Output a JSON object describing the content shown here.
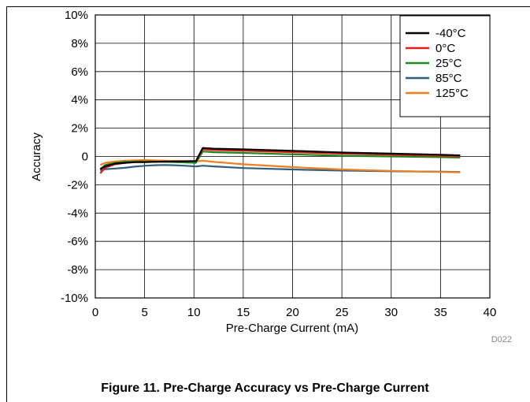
{
  "caption": "Figure 11. Pre-Charge Accuracy vs Pre-Charge Current",
  "doc_code": "D022",
  "chart_data": {
    "type": "line",
    "title": "",
    "xlabel": "Pre-Charge Current (mA)",
    "ylabel": "Accuracy",
    "xlim": [
      0,
      40
    ],
    "ylim": [
      -10,
      10
    ],
    "x_ticks": [
      0,
      5,
      10,
      15,
      20,
      25,
      30,
      35,
      40
    ],
    "x_tick_labels": [
      "0",
      "5",
      "10",
      "15",
      "20",
      "25",
      "30",
      "35",
      "40"
    ],
    "y_ticks": [
      -10,
      -8,
      -6,
      -4,
      -2,
      0,
      2,
      4,
      6,
      8,
      10
    ],
    "y_tick_labels": [
      "-10%",
      "-8%",
      "-6%",
      "-4%",
      "-2%",
      "0",
      "2%",
      "4%",
      "6%",
      "8%",
      "10%"
    ],
    "grid": true,
    "legend_position": "top-right",
    "series": [
      {
        "name": "-40°C",
        "color": "#000000",
        "x": [
          0.5,
          1,
          2,
          3,
          4,
          5,
          6,
          7,
          8,
          9,
          10.2,
          10.9,
          12,
          15,
          20,
          25,
          30,
          35,
          37
        ],
        "y": [
          -0.9,
          -0.7,
          -0.5,
          -0.45,
          -0.4,
          -0.4,
          -0.38,
          -0.36,
          -0.35,
          -0.34,
          -0.33,
          0.6,
          0.55,
          0.5,
          0.4,
          0.28,
          0.2,
          0.12,
          0.08
        ]
      },
      {
        "name": "0°C",
        "color": "#e0201b",
        "x": [
          0.5,
          1,
          2,
          3,
          4,
          5,
          6,
          7,
          8,
          9,
          10.2,
          10.9,
          12,
          15,
          20,
          25,
          30,
          35,
          37
        ],
        "y": [
          -1.2,
          -0.8,
          -0.55,
          -0.45,
          -0.4,
          -0.4,
          -0.38,
          -0.36,
          -0.35,
          -0.34,
          -0.33,
          0.5,
          0.45,
          0.4,
          0.3,
          0.2,
          0.12,
          0.05,
          0.02
        ]
      },
      {
        "name": "25°C",
        "color": "#1e8a1e",
        "x": [
          0.5,
          1,
          2,
          3,
          4,
          5,
          6,
          7,
          8,
          9,
          10.2,
          10.9,
          12,
          15,
          20,
          25,
          30,
          35,
          37
        ],
        "y": [
          -0.9,
          -0.6,
          -0.45,
          -0.38,
          -0.35,
          -0.35,
          -0.36,
          -0.38,
          -0.4,
          -0.42,
          -0.45,
          0.35,
          0.3,
          0.25,
          0.15,
          0.05,
          0.0,
          -0.05,
          -0.08
        ]
      },
      {
        "name": "85°C",
        "color": "#2e5f7f",
        "x": [
          0.5,
          1,
          2,
          3,
          4,
          5,
          6,
          7,
          8,
          9,
          10.2,
          10.9,
          12,
          15,
          20,
          25,
          30,
          35,
          37
        ],
        "y": [
          -1.0,
          -0.9,
          -0.85,
          -0.8,
          -0.72,
          -0.66,
          -0.62,
          -0.6,
          -0.62,
          -0.65,
          -0.7,
          -0.65,
          -0.7,
          -0.82,
          -0.92,
          -1.0,
          -1.05,
          -1.08,
          -1.1
        ]
      },
      {
        "name": "125°C",
        "color": "#f07f20",
        "x": [
          0.5,
          1,
          2,
          3,
          4,
          5,
          6,
          7,
          8,
          9,
          10.2,
          10.9,
          12,
          15,
          20,
          25,
          30,
          35,
          37
        ],
        "y": [
          -0.6,
          -0.45,
          -0.35,
          -0.3,
          -0.28,
          -0.25,
          -0.28,
          -0.3,
          -0.32,
          -0.33,
          -0.35,
          -0.3,
          -0.38,
          -0.55,
          -0.75,
          -0.92,
          -1.02,
          -1.1,
          -1.12
        ]
      }
    ]
  }
}
